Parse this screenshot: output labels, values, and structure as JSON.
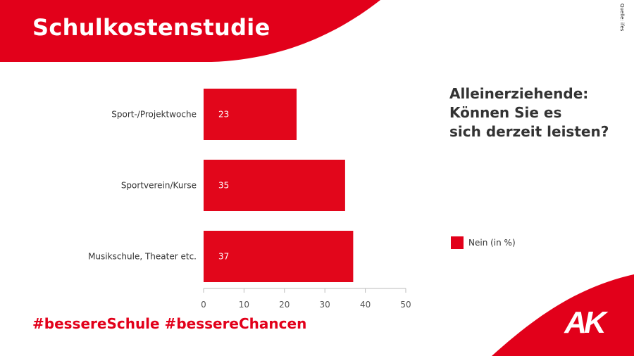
{
  "header": {
    "title": "Schulkostenstudie",
    "source": "Quelle: ifes"
  },
  "question": {
    "lines": [
      "Alleinerziehende:",
      "Können Sie es",
      "sich derzeit leisten?"
    ]
  },
  "footer": {
    "hashtags": "#bessereSchule #bessereChancen"
  },
  "logo": {
    "text": "AK"
  },
  "colors": {
    "brand_red": "#e2001a",
    "bar_red": "#e2061b",
    "text_dark": "#333333"
  },
  "chart_data": {
    "type": "bar",
    "orientation": "horizontal",
    "categories": [
      "Sport-/Projektwoche",
      "Sportverein/Kurse",
      "Musikschule, Theater etc."
    ],
    "series": [
      {
        "name": "Nein (in %)",
        "values": [
          23,
          35,
          37
        ]
      }
    ],
    "xlim": [
      0,
      50
    ],
    "xticks": [
      0,
      10,
      20,
      30,
      40,
      50
    ],
    "grid": false,
    "legend_position": "right"
  }
}
